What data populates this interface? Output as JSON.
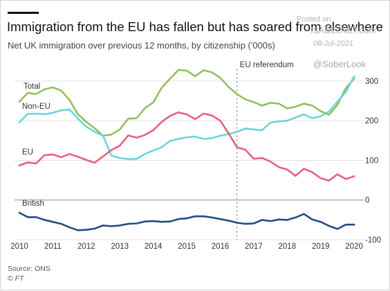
{
  "title": "Immigration from the EU has fallen but has soared from elsewhere",
  "subtitle": "Net UK immigration over previous 12 months, by citizenship ('000s)",
  "watermark": {
    "posted": "Posted on",
    "site": "ISABELNET.com",
    "date": "08-Jul-2021",
    "handle": "@SoberLook"
  },
  "source": "Source: ONS",
  "credit": "© FT",
  "chart_data": {
    "type": "line",
    "title": "Immigration from the EU has fallen but has soared from elsewhere",
    "subtitle": "Net UK immigration over previous 12 months, by citizenship ('000s)",
    "xlabel": "",
    "ylabel": "",
    "xlim": [
      2010,
      2020.1
    ],
    "ylim": [
      -100,
      340
    ],
    "x_ticks": [
      "2010",
      "2011",
      "2012",
      "2013",
      "2014",
      "2015",
      "2016",
      "2017",
      "2018",
      "2019",
      "2020"
    ],
    "y_ticks": [
      "300",
      "200",
      "100",
      "0",
      "-100"
    ],
    "grid": true,
    "y_axis_side": "right",
    "annotations": [
      {
        "label": "EU referendum",
        "x": 2016.5
      }
    ],
    "series": [
      {
        "name": "Total",
        "color": "#94bf5a",
        "x": [
          2010,
          2010.25,
          2010.5,
          2010.75,
          2011,
          2011.25,
          2011.5,
          2011.75,
          2012,
          2012.25,
          2012.5,
          2012.75,
          2013,
          2013.25,
          2013.5,
          2013.75,
          2014,
          2014.25,
          2014.5,
          2014.75,
          2015,
          2015.25,
          2015.5,
          2015.75,
          2016,
          2016.25,
          2016.5,
          2016.75,
          2017,
          2017.25,
          2017.5,
          2017.75,
          2018,
          2018.25,
          2018.5,
          2018.75,
          2019,
          2019.25,
          2019.5,
          2019.75,
          2020
        ],
        "values": [
          248,
          270,
          267,
          279,
          284,
          276,
          252,
          216,
          197,
          181,
          162,
          165,
          178,
          205,
          206,
          232,
          246,
          283,
          306,
          328,
          326,
          312,
          327,
          322,
          308,
          285,
          267,
          254,
          247,
          238,
          245,
          243,
          231,
          235,
          243,
          238,
          224,
          215,
          240,
          282,
          306
        ]
      },
      {
        "name": "Non-EU",
        "color": "#6cd4de",
        "x": [
          2010,
          2010.25,
          2010.5,
          2010.75,
          2011,
          2011.25,
          2011.5,
          2011.75,
          2012,
          2012.25,
          2012.5,
          2012.75,
          2013,
          2013.25,
          2013.5,
          2013.75,
          2014,
          2014.25,
          2014.5,
          2014.75,
          2015,
          2015.25,
          2015.5,
          2015.75,
          2016,
          2016.25,
          2016.5,
          2016.75,
          2017,
          2017.25,
          2017.5,
          2017.75,
          2018,
          2018.25,
          2018.5,
          2018.75,
          2019,
          2019.25,
          2019.5,
          2019.75,
          2020
        ],
        "values": [
          196,
          217,
          218,
          216,
          220,
          226,
          228,
          205,
          185,
          172,
          162,
          112,
          106,
          103,
          104,
          116,
          125,
          133,
          149,
          154,
          158,
          160,
          154,
          156,
          162,
          166,
          172,
          180,
          178,
          176,
          195,
          198,
          200,
          208,
          216,
          206,
          211,
          223,
          248,
          272,
          312
        ]
      },
      {
        "name": "EU",
        "color": "#e8607c",
        "x": [
          2010,
          2010.25,
          2010.5,
          2010.75,
          2011,
          2011.25,
          2011.5,
          2011.75,
          2012,
          2012.25,
          2012.5,
          2012.75,
          2013,
          2013.25,
          2013.5,
          2013.75,
          2014,
          2014.25,
          2014.5,
          2014.75,
          2015,
          2015.25,
          2015.5,
          2015.75,
          2016,
          2016.25,
          2016.5,
          2016.75,
          2017,
          2017.25,
          2017.5,
          2017.75,
          2018,
          2018.25,
          2018.5,
          2018.75,
          2019,
          2019.25,
          2019.5,
          2019.75,
          2020
        ],
        "values": [
          87,
          95,
          92,
          113,
          115,
          108,
          116,
          109,
          101,
          94,
          110,
          126,
          137,
          163,
          157,
          164,
          176,
          197,
          212,
          221,
          216,
          204,
          218,
          213,
          200,
          168,
          133,
          127,
          104,
          106,
          97,
          83,
          77,
          61,
          79,
          70,
          55,
          49,
          65,
          53,
          60
        ]
      },
      {
        "name": "British",
        "color": "#1f4d82",
        "x": [
          2010,
          2010.25,
          2010.5,
          2010.75,
          2011,
          2011.25,
          2011.5,
          2011.75,
          2012,
          2012.25,
          2012.5,
          2012.75,
          2013,
          2013.25,
          2013.5,
          2013.75,
          2014,
          2014.25,
          2014.5,
          2014.75,
          2015,
          2015.25,
          2015.5,
          2015.75,
          2016,
          2016.25,
          2016.5,
          2016.75,
          2017,
          2017.25,
          2017.5,
          2017.75,
          2018,
          2018.25,
          2018.5,
          2018.75,
          2019,
          2019.25,
          2019.5,
          2019.75,
          2020
        ],
        "values": [
          -32,
          -43,
          -43,
          -50,
          -55,
          -60,
          -69,
          -76,
          -75,
          -72,
          -64,
          -66,
          -64,
          -60,
          -59,
          -54,
          -53,
          -55,
          -54,
          -48,
          -46,
          -41,
          -41,
          -44,
          -48,
          -52,
          -57,
          -60,
          -59,
          -50,
          -53,
          -49,
          -50,
          -44,
          -35,
          -49,
          -55,
          -65,
          -73,
          -62,
          -62
        ]
      }
    ]
  }
}
